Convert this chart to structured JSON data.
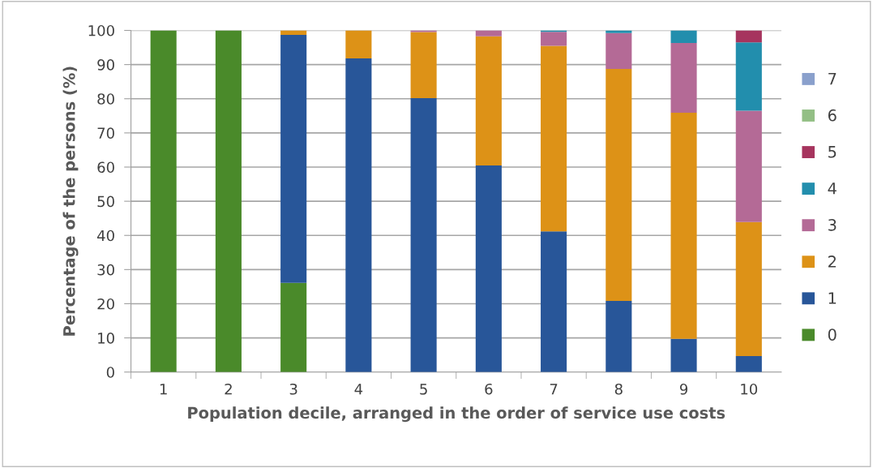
{
  "chart_data": {
    "type": "bar",
    "stacked": true,
    "xlabel": "Population decile, arranged in the order of service use costs",
    "ylabel": "Percentage of the persons (%)",
    "categories": [
      "1",
      "2",
      "3",
      "4",
      "5",
      "6",
      "7",
      "8",
      "9",
      "10"
    ],
    "series": [
      {
        "name": "0",
        "color": "#4a8a2a",
        "values": [
          100,
          100,
          26.1,
          0,
          0,
          0,
          0,
          0,
          0,
          0
        ]
      },
      {
        "name": "1",
        "color": "#285699",
        "values": [
          0,
          0,
          72.6,
          91.8,
          80.2,
          60.5,
          41.2,
          20.8,
          9.7,
          4.7
        ]
      },
      {
        "name": "2",
        "color": "#dd9217",
        "values": [
          0,
          0,
          1.3,
          8.2,
          19.3,
          37.8,
          54.3,
          67.9,
          66.2,
          39.2
        ]
      },
      {
        "name": "3",
        "color": "#b46a96",
        "values": [
          0,
          0,
          0,
          0,
          0.5,
          1.7,
          4.1,
          10.5,
          20.4,
          32.6
        ]
      },
      {
        "name": "4",
        "color": "#228ead",
        "values": [
          0,
          0,
          0,
          0,
          0,
          0,
          0.4,
          0.8,
          3.7,
          20.0
        ]
      },
      {
        "name": "5",
        "color": "#a6345e",
        "values": [
          0,
          0,
          0,
          0,
          0,
          0,
          0,
          0,
          0,
          3.5
        ]
      },
      {
        "name": "6",
        "color": "#93bf85",
        "values": [
          0,
          0,
          0,
          0,
          0,
          0,
          0,
          0,
          0,
          0
        ]
      },
      {
        "name": "7",
        "color": "#8aa0cc",
        "values": [
          0,
          0,
          0,
          0,
          0,
          0,
          0,
          0,
          0,
          0
        ]
      }
    ],
    "ylim": [
      0,
      100
    ],
    "yticks": [
      0,
      10,
      20,
      30,
      40,
      50,
      60,
      70,
      80,
      90,
      100
    ],
    "grid": "y",
    "legend": "right"
  }
}
